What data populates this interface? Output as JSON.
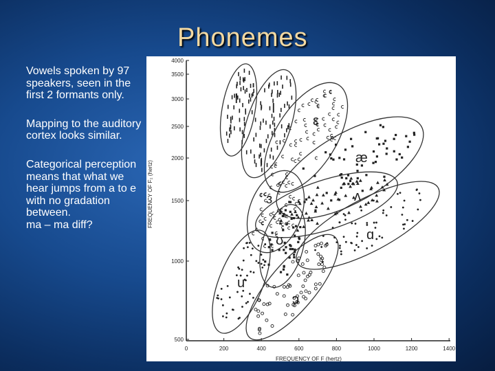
{
  "slide": {
    "title": "Phonemes",
    "paragraphs": [
      "Vowels spoken by 97 speakers, seen in the first 2 formants only.",
      "Mapping to the auditory cortex looks similar.",
      "Categorical perception means that what we hear jumps from a to e with no gradation between."
    ],
    "note": "ma – ma diff?"
  },
  "figure": {
    "y_axis_label": "FREQUENCY OF F₂ (hertz)",
    "x_axis_label": "FREQUENCY OF F (hertz)",
    "y_ticks": [
      "4000",
      "3500",
      "3000",
      "2500",
      "2000",
      "1500",
      "1000",
      "500"
    ],
    "x_ticks": [
      "0",
      "200",
      "400",
      "600",
      "800",
      "1000",
      "1200",
      "1400"
    ],
    "vowel_labels": [
      "I",
      "I",
      "ε",
      "æ",
      "ʌ",
      "ɑ",
      "ɜ",
      "ʊ",
      "u",
      "ɔ"
    ]
  },
  "colors": {
    "title": "#f3d9a2",
    "background": "#174a8e",
    "body_text": "#ffffff"
  }
}
